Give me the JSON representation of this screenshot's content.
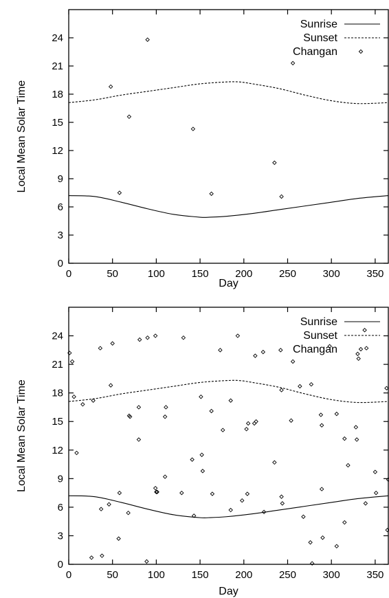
{
  "chart_data": [
    {
      "type": "scatter",
      "xlabel": "Day",
      "ylabel": "Local Mean Solar Time",
      "xlim": [
        0,
        365
      ],
      "ylim": [
        0,
        27
      ],
      "xticks": [
        0,
        50,
        100,
        150,
        200,
        250,
        300,
        350
      ],
      "yticks": [
        0,
        3,
        6,
        9,
        12,
        15,
        18,
        21,
        24
      ],
      "grid": false,
      "legend": "top-right",
      "series": [
        {
          "name": "Sunrise",
          "style": "solid",
          "x": [
            0,
            30,
            60,
            90,
            120,
            150,
            160,
            180,
            210,
            240,
            270,
            300,
            330,
            365
          ],
          "y": [
            7.2,
            7.1,
            6.5,
            5.8,
            5.2,
            4.9,
            4.9,
            5.0,
            5.3,
            5.7,
            6.1,
            6.5,
            6.9,
            7.2
          ]
        },
        {
          "name": "Sunset",
          "style": "dashed",
          "x": [
            0,
            30,
            60,
            90,
            120,
            150,
            180,
            195,
            210,
            240,
            270,
            300,
            330,
            365
          ],
          "y": [
            17.1,
            17.4,
            17.9,
            18.3,
            18.7,
            19.1,
            19.3,
            19.3,
            19.1,
            18.6,
            17.9,
            17.3,
            17.0,
            17.1
          ]
        },
        {
          "name": "Changan",
          "style": "points",
          "x": [
            48,
            58,
            69,
            90,
            142,
            163,
            235,
            243,
            256
          ],
          "y": [
            18.8,
            7.5,
            15.6,
            23.8,
            14.3,
            7.4,
            10.7,
            7.1,
            21.3
          ]
        }
      ]
    },
    {
      "type": "scatter",
      "xlabel": "Day",
      "ylabel": "Local Mean Solar Time",
      "xlim": [
        0,
        365
      ],
      "ylim": [
        0,
        27
      ],
      "xticks": [
        0,
        50,
        100,
        150,
        200,
        250,
        300,
        350
      ],
      "yticks": [
        0,
        3,
        6,
        9,
        12,
        15,
        18,
        21,
        24
      ],
      "grid": false,
      "legend": "top-right",
      "series": [
        {
          "name": "Sunrise",
          "style": "solid",
          "x": [
            0,
            30,
            60,
            90,
            120,
            150,
            160,
            180,
            210,
            240,
            270,
            300,
            330,
            365
          ],
          "y": [
            7.2,
            7.1,
            6.5,
            5.8,
            5.2,
            4.9,
            4.9,
            5.0,
            5.3,
            5.7,
            6.1,
            6.5,
            6.9,
            7.2
          ]
        },
        {
          "name": "Sunset",
          "style": "dashed",
          "x": [
            0,
            30,
            60,
            90,
            120,
            150,
            180,
            195,
            210,
            240,
            270,
            300,
            330,
            365
          ],
          "y": [
            17.1,
            17.4,
            17.9,
            18.3,
            18.7,
            19.1,
            19.3,
            19.3,
            19.1,
            18.6,
            17.9,
            17.3,
            17.0,
            17.1
          ]
        },
        {
          "name": "Changan",
          "style": "points",
          "x": [
            1,
            4,
            6,
            9,
            16,
            26,
            28,
            36,
            37,
            38,
            46,
            48,
            50,
            57,
            58,
            68,
            69,
            70,
            80,
            80,
            81,
            89,
            90,
            99,
            99,
            100,
            101,
            110,
            110,
            111,
            129,
            131,
            141,
            143,
            151,
            152,
            153,
            163,
            164,
            173,
            176,
            185,
            185,
            193,
            198,
            203,
            204,
            205,
            212,
            213,
            214,
            222,
            223,
            235,
            242,
            243,
            243,
            244,
            254,
            256,
            264,
            268,
            276,
            277,
            278,
            288,
            289,
            289,
            290,
            298,
            306,
            306,
            315,
            315,
            319,
            328,
            329,
            330,
            331,
            338,
            339,
            340,
            350,
            351,
            363,
            364,
            365
          ],
          "y": [
            22.2,
            21.3,
            17.6,
            11.7,
            16.8,
            0.7,
            17.2,
            22.7,
            5.8,
            0.9,
            6.3,
            18.8,
            23.2,
            2.7,
            7.5,
            5.4,
            15.6,
            15.5,
            16.5,
            13.1,
            23.6,
            0.3,
            23.8,
            24.0,
            8.0,
            7.6,
            7.6,
            9.2,
            15.5,
            16.5,
            7.5,
            23.8,
            11.0,
            5.1,
            17.6,
            11.5,
            9.8,
            16.1,
            7.4,
            22.5,
            14.1,
            17.2,
            5.7,
            24.0,
            6.7,
            14.2,
            7.4,
            14.8,
            14.8,
            21.9,
            15.0,
            22.3,
            5.5,
            10.7,
            22.5,
            7.1,
            18.3,
            6.4,
            15.1,
            21.3,
            18.7,
            5.0,
            2.3,
            18.9,
            0.1,
            15.7,
            7.9,
            14.6,
            2.8,
            22.9,
            1.9,
            15.8,
            13.2,
            4.4,
            10.4,
            14.4,
            13.1,
            22.1,
            21.6,
            24.6,
            6.4,
            22.7,
            9.7,
            7.5,
            18.5,
            3.6,
            8.9
          ]
        }
      ]
    }
  ]
}
